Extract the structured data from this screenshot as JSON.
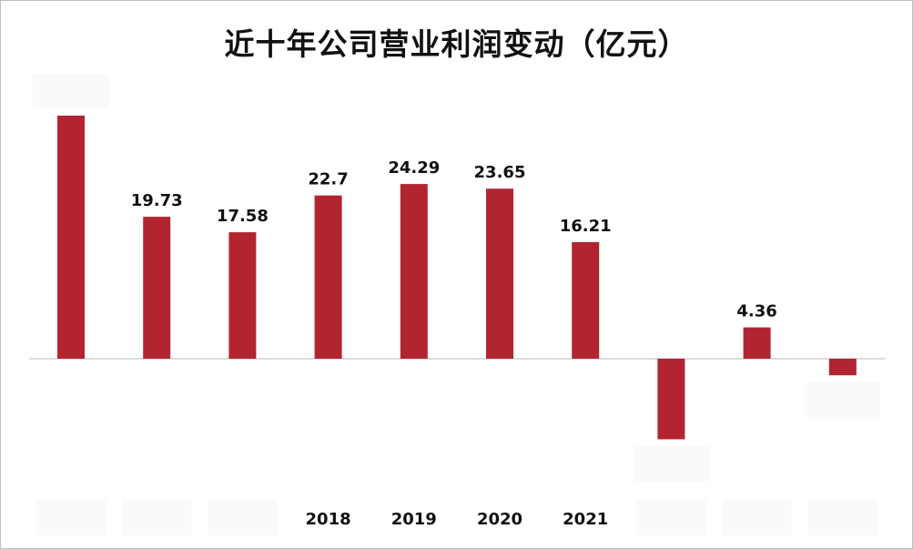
{
  "title": "近十年公司营业利润变动（亿元）",
  "chart_data": {
    "type": "bar",
    "title": "近十年公司营业利润变动（亿元）",
    "xlabel": "",
    "ylabel": "",
    "categories": [
      "",
      "",
      "",
      "2018",
      "2019",
      "2020",
      "2021",
      "",
      "",
      ""
    ],
    "values": [
      33.8,
      19.73,
      17.58,
      22.7,
      24.29,
      23.65,
      16.21,
      -11.2,
      4.36,
      -2.3
    ],
    "data_labels": [
      "",
      "19.73",
      "17.58",
      "22.7",
      "24.29",
      "23.65",
      "16.21",
      "",
      "4.36",
      ""
    ],
    "bar_color": "#b22530",
    "axis_color": "#d0d0d0",
    "grid": false,
    "legend": "none"
  }
}
